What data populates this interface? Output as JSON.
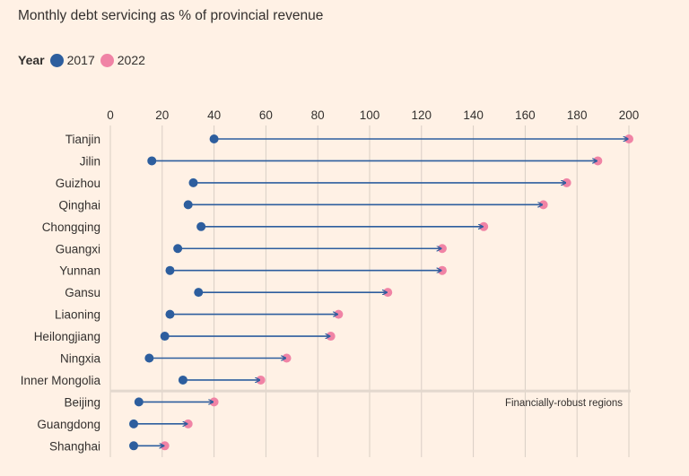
{
  "title": "Monthly debt servicing as % of provincial revenue",
  "legend": {
    "label": "Year",
    "items": [
      {
        "name": "2017",
        "color": "#2d5e9e"
      },
      {
        "name": "2022",
        "color": "#f083a5"
      }
    ]
  },
  "annotation": "Financially-robust regions",
  "chart_data": {
    "type": "dumbbell",
    "title": "Monthly debt servicing as % of provincial revenue",
    "xlim": [
      0,
      200
    ],
    "xticks": [
      0,
      20,
      40,
      60,
      80,
      100,
      120,
      140,
      160,
      180,
      200
    ],
    "grid": true,
    "legend_position": "top-left",
    "series_names": [
      "2017",
      "2022"
    ],
    "categories": [
      "Tianjin",
      "Jilin",
      "Guizhou",
      "Qinghai",
      "Chongqing",
      "Guangxi",
      "Yunnan",
      "Gansu",
      "Liaoning",
      "Heilongjiang",
      "Ningxia",
      "Inner Mongolia",
      "Beijing",
      "Guangdong",
      "Shanghai"
    ],
    "series": [
      {
        "name": "2017",
        "values": [
          40,
          16,
          32,
          30,
          35,
          26,
          23,
          34,
          23,
          21,
          15,
          28,
          11,
          9,
          9
        ]
      },
      {
        "name": "2022",
        "values": [
          200,
          188,
          176,
          167,
          144,
          128,
          128,
          107,
          88,
          85,
          68,
          58,
          40,
          30,
          21
        ]
      }
    ],
    "groups": [
      {
        "name": "",
        "count": 12
      },
      {
        "name": "Financially-robust regions",
        "count": 3
      }
    ]
  }
}
